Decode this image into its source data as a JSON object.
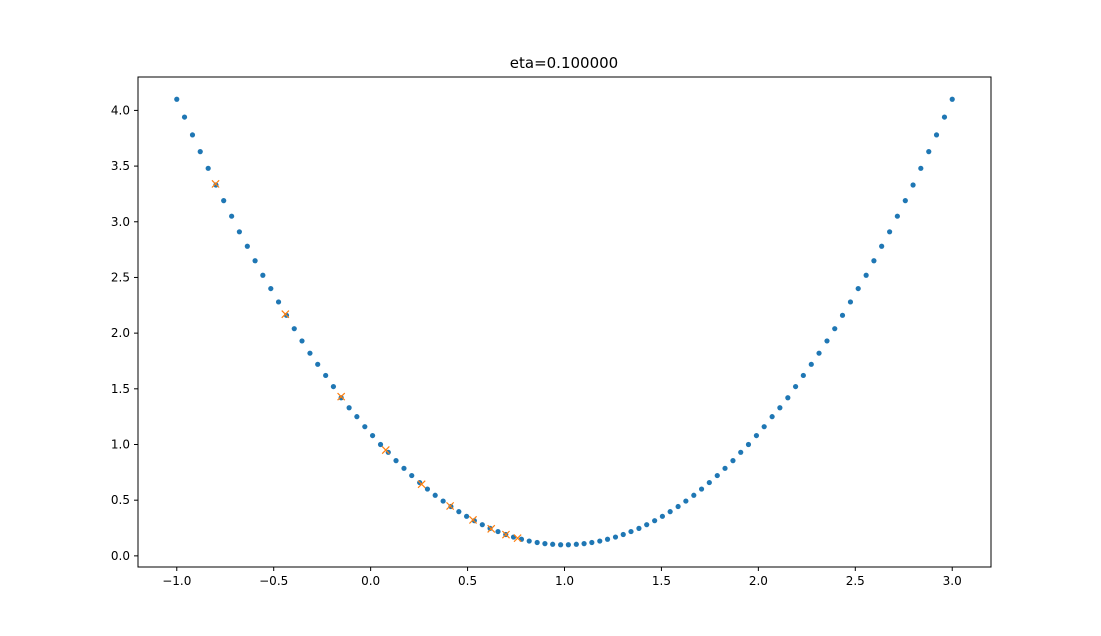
{
  "chart_data": {
    "type": "scatter",
    "title": "eta=0.100000",
    "xlabel": "",
    "ylabel": "",
    "xlim": [
      -1.2,
      3.2
    ],
    "ylim": [
      -0.1,
      4.3
    ],
    "grid": false,
    "x_ticks": [
      -1.0,
      -0.5,
      0.0,
      0.5,
      1.0,
      1.5,
      2.0,
      2.5,
      3.0
    ],
    "x_tick_labels": [
      "−1.0",
      "−0.5",
      "0.0",
      "0.5",
      "1.0",
      "1.5",
      "2.0",
      "2.5",
      "3.0"
    ],
    "y_ticks": [
      0.0,
      0.5,
      1.0,
      1.5,
      2.0,
      2.5,
      3.0,
      3.5,
      4.0
    ],
    "y_tick_labels": [
      "0.0",
      "0.5",
      "1.0",
      "1.5",
      "2.0",
      "2.5",
      "3.0",
      "3.5",
      "4.0"
    ],
    "series": [
      {
        "marker": "dot",
        "color": "#1f77b4",
        "points": [
          [
            -1.0,
            4.1
          ],
          [
            -0.96,
            3.94
          ],
          [
            -0.919,
            3.78
          ],
          [
            -0.879,
            3.63
          ],
          [
            -0.838,
            3.48
          ],
          [
            -0.798,
            3.33
          ],
          [
            -0.758,
            3.19
          ],
          [
            -0.717,
            3.05
          ],
          [
            -0.677,
            2.91
          ],
          [
            -0.636,
            2.78
          ],
          [
            -0.596,
            2.65
          ],
          [
            -0.556,
            2.52
          ],
          [
            -0.515,
            2.4
          ],
          [
            -0.475,
            2.28
          ],
          [
            -0.434,
            2.16
          ],
          [
            -0.394,
            2.04
          ],
          [
            -0.354,
            1.93
          ],
          [
            -0.313,
            1.82
          ],
          [
            -0.273,
            1.72
          ],
          [
            -0.232,
            1.62
          ],
          [
            -0.192,
            1.52
          ],
          [
            -0.152,
            1.42
          ],
          [
            -0.111,
            1.33
          ],
          [
            -0.071,
            1.25
          ],
          [
            -0.03,
            1.16
          ],
          [
            0.01,
            1.08
          ],
          [
            0.051,
            1.0
          ],
          [
            0.091,
            0.93
          ],
          [
            0.131,
            0.855
          ],
          [
            0.172,
            0.786
          ],
          [
            0.212,
            0.721
          ],
          [
            0.253,
            0.658
          ],
          [
            0.293,
            0.6
          ],
          [
            0.333,
            0.544
          ],
          [
            0.374,
            0.492
          ],
          [
            0.414,
            0.443
          ],
          [
            0.455,
            0.397
          ],
          [
            0.495,
            0.355
          ],
          [
            0.535,
            0.316
          ],
          [
            0.576,
            0.28
          ],
          [
            0.616,
            0.247
          ],
          [
            0.657,
            0.218
          ],
          [
            0.697,
            0.192
          ],
          [
            0.737,
            0.169
          ],
          [
            0.778,
            0.149
          ],
          [
            0.818,
            0.133
          ],
          [
            0.859,
            0.12
          ],
          [
            0.899,
            0.11
          ],
          [
            0.939,
            0.104
          ],
          [
            0.98,
            0.1
          ],
          [
            1.02,
            0.1
          ],
          [
            1.061,
            0.104
          ],
          [
            1.101,
            0.11
          ],
          [
            1.141,
            0.12
          ],
          [
            1.182,
            0.133
          ],
          [
            1.222,
            0.149
          ],
          [
            1.263,
            0.169
          ],
          [
            1.303,
            0.192
          ],
          [
            1.343,
            0.218
          ],
          [
            1.384,
            0.247
          ],
          [
            1.424,
            0.28
          ],
          [
            1.465,
            0.316
          ],
          [
            1.505,
            0.355
          ],
          [
            1.545,
            0.397
          ],
          [
            1.586,
            0.443
          ],
          [
            1.626,
            0.492
          ],
          [
            1.667,
            0.544
          ],
          [
            1.707,
            0.6
          ],
          [
            1.747,
            0.658
          ],
          [
            1.788,
            0.721
          ],
          [
            1.828,
            0.786
          ],
          [
            1.869,
            0.855
          ],
          [
            1.909,
            0.93
          ],
          [
            1.949,
            1.0
          ],
          [
            1.99,
            1.08
          ],
          [
            2.03,
            1.16
          ],
          [
            2.071,
            1.25
          ],
          [
            2.111,
            1.33
          ],
          [
            2.152,
            1.42
          ],
          [
            2.192,
            1.52
          ],
          [
            2.232,
            1.62
          ],
          [
            2.273,
            1.72
          ],
          [
            2.313,
            1.82
          ],
          [
            2.354,
            1.93
          ],
          [
            2.394,
            2.04
          ],
          [
            2.434,
            2.16
          ],
          [
            2.475,
            2.28
          ],
          [
            2.515,
            2.4
          ],
          [
            2.556,
            2.52
          ],
          [
            2.596,
            2.65
          ],
          [
            2.636,
            2.78
          ],
          [
            2.677,
            2.91
          ],
          [
            2.717,
            3.05
          ],
          [
            2.758,
            3.19
          ],
          [
            2.798,
            3.33
          ],
          [
            2.838,
            3.48
          ],
          [
            2.879,
            3.63
          ],
          [
            2.919,
            3.78
          ],
          [
            2.96,
            3.94
          ],
          [
            3.0,
            4.1
          ]
        ]
      },
      {
        "marker": "x",
        "color": "#ff7f0e",
        "points": [
          [
            -0.8,
            3.34
          ],
          [
            -0.44,
            2.17
          ],
          [
            -0.152,
            1.43
          ],
          [
            0.078,
            0.95
          ],
          [
            0.263,
            0.643
          ],
          [
            0.41,
            0.448
          ],
          [
            0.528,
            0.323
          ],
          [
            0.622,
            0.243
          ],
          [
            0.698,
            0.191
          ],
          [
            0.758,
            0.159
          ]
        ]
      }
    ]
  }
}
